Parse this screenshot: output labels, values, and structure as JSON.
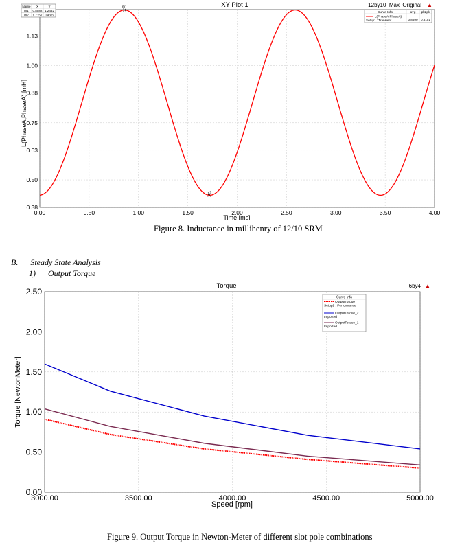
{
  "chart_data": [
    {
      "type": "line",
      "title": "XY Plot 1",
      "corner_label": "12by10_Max_Original",
      "xlabel": "Time [ms]",
      "ylabel": "L(PhaseA,PhaseA) [mH]",
      "xlim": [
        0.0,
        4.0
      ],
      "ylim": [
        0.38,
        1.245
      ],
      "x_ticks": [
        "0.00",
        "0.50",
        "1.00",
        "1.50",
        "2.00",
        "2.50",
        "3.00",
        "3.50",
        "4.00"
      ],
      "y_ticks": [
        "0.38",
        "0.50",
        "0.63",
        "0.75",
        "0.88",
        "1.00",
        "1.13"
      ],
      "grid": true,
      "waveform": {
        "min": 0.4329,
        "max": 1.2432,
        "period_ms": 1.73,
        "first_peak_ms": 0.858
      },
      "series": [
        {
          "name": "L(PhaseA,PhaseA)",
          "setup": "Setup1 : Transient",
          "color": "#ff0000",
          "avg": "0.8590",
          "pk2pk": "0.8151"
        }
      ],
      "legend": {
        "header": "Curve Info",
        "columns": [
          "avg",
          "pk2pk"
        ],
        "placement": "top-right"
      },
      "markers_table": {
        "headers": [
          "Name",
          "X",
          "Y"
        ],
        "rows": [
          [
            "m1",
            "0.8582",
            "1.2432"
          ],
          [
            "m2",
            "1.7157",
            "0.4329"
          ]
        ]
      },
      "markers": [
        {
          "name": "m1",
          "x": 0.8582,
          "y": 1.2432
        },
        {
          "name": "m2",
          "x": 1.7157,
          "y": 0.4329
        }
      ]
    },
    {
      "type": "line",
      "title": "Torque",
      "corner_label": "6by4",
      "xlabel": "Speed [rpm]",
      "ylabel": "Torque [NewtonMeter]",
      "xlim": [
        3000,
        5000
      ],
      "ylim": [
        0,
        2.5
      ],
      "x_ticks": [
        "3000.00",
        "3500.00",
        "4000.00",
        "4500.00",
        "5000.00"
      ],
      "y_ticks": [
        "0.00",
        "0.50",
        "1.00",
        "1.50",
        "2.00",
        "2.50"
      ],
      "grid": true,
      "legend": {
        "header": "Curve Info",
        "placement": "top-right"
      },
      "series": [
        {
          "name": "OutputTorque",
          "setup": "Setup2 : Performance",
          "color": "#ff0000",
          "style": "dotted",
          "x": [
            3000,
            3350,
            3850,
            4400,
            5000
          ],
          "values": [
            0.91,
            0.72,
            0.54,
            0.41,
            0.3
          ]
        },
        {
          "name": "OutputTorque_2",
          "setup": "Imported",
          "color": "#0000cc",
          "style": "solid",
          "x": [
            3000,
            3350,
            3850,
            4400,
            5000
          ],
          "values": [
            1.6,
            1.26,
            0.95,
            0.71,
            0.54
          ]
        },
        {
          "name": "OutputTorque_1",
          "setup": "Imported",
          "color": "#7a2a50",
          "style": "solid",
          "x": [
            3000,
            3350,
            3850,
            4400,
            5000
          ],
          "values": [
            1.04,
            0.82,
            0.61,
            0.45,
            0.34
          ]
        }
      ]
    }
  ],
  "captions": {
    "fig8": "Figure 8. Inductance in millihenry of 12/10 SRM",
    "fig9": "Figure 9. Output Torque in Newton-Meter of different slot pole combinations"
  },
  "headings": {
    "section": "B.",
    "section_title": "Steady State Analysis",
    "subsection": "1)",
    "subsection_title": "Output Torque"
  }
}
